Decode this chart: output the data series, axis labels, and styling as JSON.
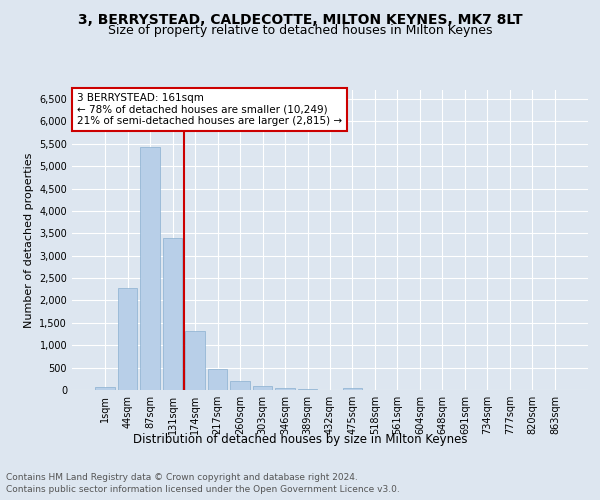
{
  "title1": "3, BERRYSTEAD, CALDECOTTE, MILTON KEYNES, MK7 8LT",
  "title2": "Size of property relative to detached houses in Milton Keynes",
  "xlabel": "Distribution of detached houses by size in Milton Keynes",
  "ylabel": "Number of detached properties",
  "footnote1": "Contains HM Land Registry data © Crown copyright and database right 2024.",
  "footnote2": "Contains public sector information licensed under the Open Government Licence v3.0.",
  "bar_labels": [
    "1sqm",
    "44sqm",
    "87sqm",
    "131sqm",
    "174sqm",
    "217sqm",
    "260sqm",
    "303sqm",
    "346sqm",
    "389sqm",
    "432sqm",
    "475sqm",
    "518sqm",
    "561sqm",
    "604sqm",
    "648sqm",
    "691sqm",
    "734sqm",
    "777sqm",
    "820sqm",
    "863sqm"
  ],
  "bar_values": [
    75,
    2280,
    5420,
    3390,
    1310,
    480,
    210,
    90,
    55,
    20,
    5,
    55,
    0,
    0,
    0,
    0,
    0,
    0,
    0,
    0,
    0
  ],
  "bar_color": "#b8cfe8",
  "bar_edge_color": "#8ab0d0",
  "vline_x_index": 3.5,
  "vline_color": "#cc0000",
  "annotation_text": "3 BERRYSTEAD: 161sqm\n← 78% of detached houses are smaller (10,249)\n21% of semi-detached houses are larger (2,815) →",
  "annotation_box_color": "#ffffff",
  "annotation_box_edge": "#cc0000",
  "ylim": [
    0,
    6700
  ],
  "yticks": [
    0,
    500,
    1000,
    1500,
    2000,
    2500,
    3000,
    3500,
    4000,
    4500,
    5000,
    5500,
    6000,
    6500
  ],
  "background_color": "#dde6f0",
  "plot_bg_color": "#dde6f0",
  "title1_fontsize": 10,
  "title2_fontsize": 9,
  "xlabel_fontsize": 8.5,
  "ylabel_fontsize": 8,
  "tick_fontsize": 7,
  "annotation_fontsize": 7.5,
  "footnote_fontsize": 6.5,
  "grid_color": "#ffffff"
}
